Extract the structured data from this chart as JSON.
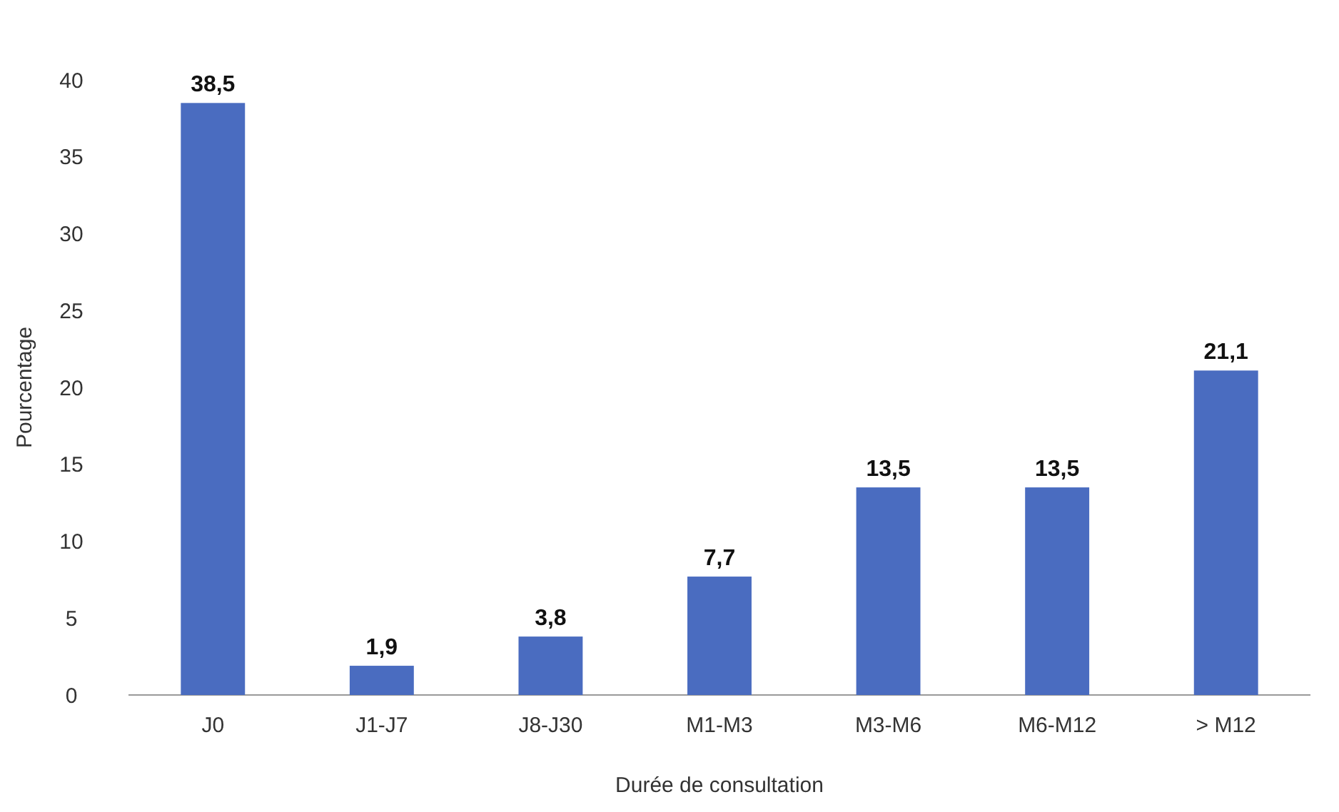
{
  "chart_data": {
    "type": "bar",
    "xlabel": "Durée de consultation",
    "ylabel": "Pourcentage",
    "categories": [
      "J0",
      "J1-J7",
      "J8-J30",
      "M1-M3",
      "M3-M6",
      "M6-M12",
      "> M12"
    ],
    "values": [
      38.5,
      1.9,
      3.8,
      7.7,
      13.5,
      13.5,
      21.1
    ],
    "value_labels": [
      "38,5",
      "1,9",
      "3,8",
      "7,7",
      "13,5",
      "13,5",
      "21,1"
    ],
    "color": "#4a6cc0",
    "ylim": [
      0,
      40
    ],
    "yticks": [
      0,
      5,
      10,
      15,
      20,
      25,
      30,
      35,
      40
    ]
  }
}
